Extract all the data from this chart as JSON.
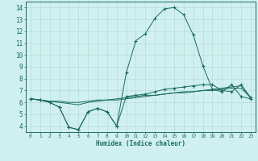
{
  "xlabel": "Humidex (Indice chaleur)",
  "bg_color": "#cff0ee",
  "grid_color": "#b8ddd9",
  "line_color": "#1a6b5e",
  "xlim": [
    -0.5,
    23.5
  ],
  "ylim": [
    3.5,
    14.5
  ],
  "xticks": [
    0,
    1,
    2,
    3,
    4,
    5,
    6,
    7,
    8,
    9,
    10,
    11,
    12,
    13,
    14,
    15,
    16,
    17,
    18,
    19,
    20,
    21,
    22,
    23
  ],
  "yticks": [
    4,
    5,
    6,
    7,
    8,
    9,
    10,
    11,
    12,
    13,
    14
  ],
  "series1_x": [
    0,
    1,
    2,
    3,
    4,
    5,
    6,
    7,
    8,
    9,
    10,
    11,
    12,
    13,
    14,
    15,
    16,
    17,
    18,
    19,
    20,
    21,
    22,
    23
  ],
  "series1_y": [
    6.3,
    6.2,
    6.0,
    5.6,
    3.9,
    3.7,
    5.2,
    5.5,
    5.2,
    4.0,
    6.5,
    6.6,
    6.7,
    6.9,
    7.1,
    7.2,
    7.3,
    7.4,
    7.5,
    7.5,
    7.0,
    6.9,
    7.5,
    6.4
  ],
  "series2_x": [
    0,
    1,
    2,
    3,
    4,
    5,
    6,
    7,
    8,
    9,
    10,
    11,
    12,
    13,
    14,
    15,
    16,
    17,
    18,
    19,
    20,
    21,
    22,
    23
  ],
  "series2_y": [
    6.3,
    6.2,
    6.0,
    5.6,
    3.9,
    3.7,
    5.2,
    5.5,
    5.2,
    4.0,
    8.5,
    11.2,
    11.8,
    13.1,
    13.9,
    14.0,
    13.4,
    11.7,
    9.1,
    7.1,
    6.9,
    7.5,
    6.5,
    6.3
  ],
  "series3_x": [
    0,
    1,
    2,
    3,
    4,
    5,
    6,
    7,
    8,
    9,
    10,
    11,
    12,
    13,
    14,
    15,
    16,
    17,
    18,
    19,
    20,
    21,
    22,
    23
  ],
  "series3_y": [
    6.3,
    6.2,
    6.1,
    6.0,
    5.9,
    5.8,
    6.0,
    6.1,
    6.2,
    6.2,
    6.3,
    6.4,
    6.5,
    6.6,
    6.7,
    6.8,
    6.9,
    6.9,
    7.0,
    7.1,
    7.2,
    7.3,
    7.4,
    6.4
  ],
  "series4_x": [
    0,
    1,
    2,
    3,
    4,
    5,
    6,
    7,
    8,
    9,
    10,
    11,
    12,
    13,
    14,
    15,
    16,
    17,
    18,
    19,
    20,
    21,
    22,
    23
  ],
  "series4_y": [
    6.3,
    6.2,
    6.1,
    6.1,
    6.0,
    6.0,
    6.1,
    6.2,
    6.2,
    6.3,
    6.4,
    6.5,
    6.6,
    6.6,
    6.7,
    6.8,
    6.8,
    6.9,
    7.0,
    7.0,
    7.1,
    7.2,
    7.2,
    6.4
  ]
}
